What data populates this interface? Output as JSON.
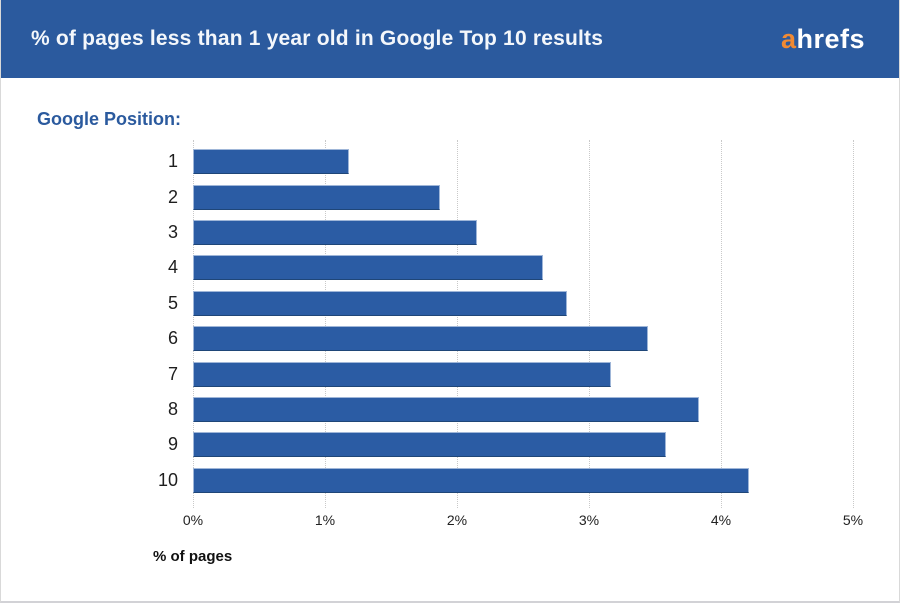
{
  "header": {
    "title": "% of pages less than 1 year old in Google Top 10 results",
    "logo": {
      "accent_letter": "a",
      "rest": "hrefs"
    }
  },
  "chart_label": "Google Position:",
  "chart_data": {
    "type": "bar",
    "orientation": "horizontal",
    "title": "% of pages less than 1 year old in Google Top 10 results",
    "categories": [
      "1",
      "2",
      "3",
      "4",
      "5",
      "6",
      "7",
      "8",
      "9",
      "10"
    ],
    "values": [
      1.18,
      1.87,
      2.15,
      2.65,
      2.83,
      3.45,
      3.17,
      3.83,
      3.58,
      4.21
    ],
    "xlabel": "% of pages",
    "x_ticks": [
      "0%",
      "1%",
      "2%",
      "3%",
      "4%",
      "5%"
    ],
    "xlim": [
      0,
      5
    ],
    "grid": "vertical-dotted",
    "legend": "none"
  },
  "colors": {
    "header_bg": "#2b5a9e",
    "bar_fill": "#2b5ca4",
    "accent_orange": "#f18a33",
    "label_blue": "#2b5a9e",
    "grid": "#c9c9c9"
  }
}
